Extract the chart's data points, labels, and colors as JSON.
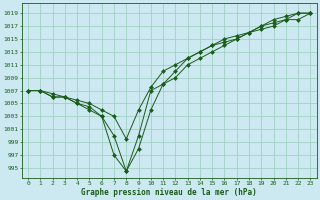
{
  "xlabel": "Graphe pression niveau de la mer (hPa)",
  "background_color": "#cce8f0",
  "grid_color": "#99ccbb",
  "line_color": "#1a5c1a",
  "marker_color": "#1a5c1a",
  "ylim": [
    993.5,
    1020.5
  ],
  "xlim": [
    -0.5,
    23.5
  ],
  "ytick_vals": [
    995,
    997,
    999,
    1001,
    1003,
    1005,
    1007,
    1009,
    1011,
    1013,
    1015,
    1017,
    1019
  ],
  "xtick_vals": [
    0,
    1,
    2,
    3,
    4,
    5,
    6,
    7,
    8,
    9,
    10,
    11,
    12,
    13,
    14,
    15,
    16,
    17,
    18,
    19,
    20,
    21,
    22,
    23
  ],
  "series": [
    [
      1007,
      1007,
      1006,
      1006,
      1005,
      1004,
      1003,
      1000,
      994.5,
      998,
      1004,
      1008,
      1009,
      1011,
      1012,
      1013,
      1014,
      1015,
      1016,
      1017,
      1018,
      1018.5,
      1019,
      1019
    ],
    [
      1007,
      1007,
      1006,
      1006,
      1005.5,
      1005,
      1004,
      1003,
      999.5,
      1004,
      1007.5,
      1010,
      1011,
      1012,
      1013,
      1014,
      1014.5,
      1015,
      1016,
      1016.5,
      1017,
      1018,
      1018,
      1019
    ],
    [
      1007,
      1007,
      1006.5,
      1006,
      1005,
      1004.5,
      1003,
      997,
      994.5,
      1000,
      1007,
      1008,
      1010,
      1012,
      1013,
      1014,
      1015,
      1015.5,
      1016,
      1017,
      1017.5,
      1018,
      1019,
      1019
    ]
  ],
  "linewidth": 0.7,
  "markersize": 2.0,
  "tick_labelsize": 4.5,
  "xlabel_fontsize": 5.5
}
